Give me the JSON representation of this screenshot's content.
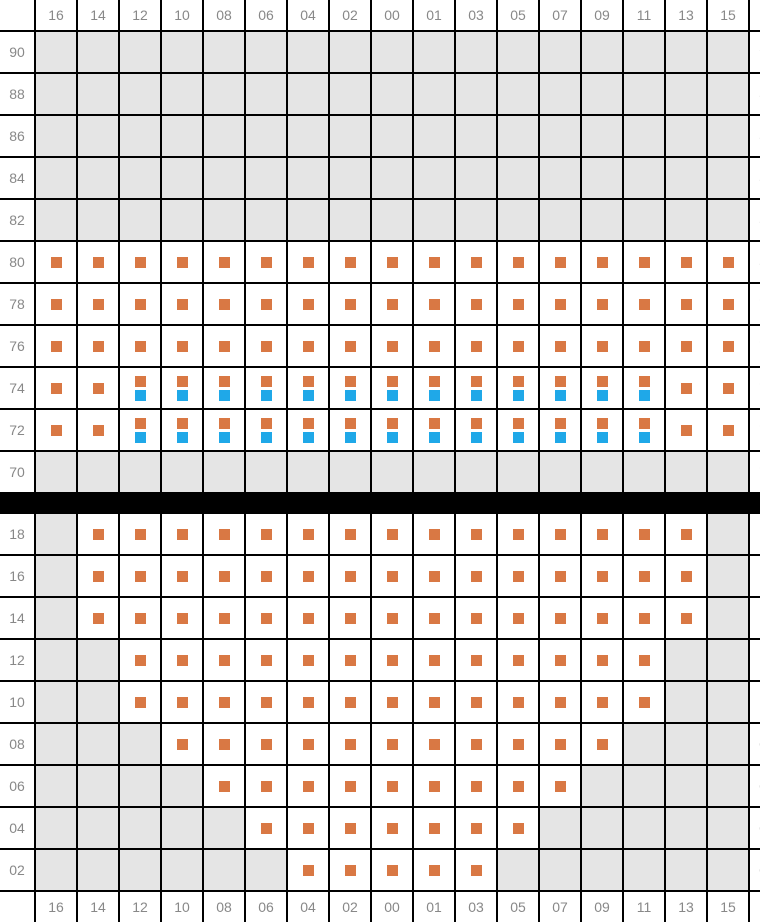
{
  "layout": {
    "cell_size": 40,
    "gap": 2,
    "label_width": 34,
    "marker_size": 11
  },
  "colors": {
    "background": "#000000",
    "cell_inactive": "#e5e5e5",
    "cell_active": "#ffffff",
    "marker_orange": "#d97844",
    "marker_blue": "#1fa8e8",
    "label_text": "#888888"
  },
  "typography": {
    "label_fontsize": 14
  },
  "sections": [
    {
      "id": "upper",
      "col_labels_top": [
        "16",
        "14",
        "12",
        "10",
        "08",
        "06",
        "04",
        "02",
        "00",
        "01",
        "03",
        "05",
        "07",
        "09",
        "11",
        "13",
        "15"
      ],
      "col_labels_bottom": null,
      "row_labels": [
        "90",
        "88",
        "86",
        "84",
        "82",
        "80",
        "78",
        "76",
        "74",
        "72",
        "70"
      ],
      "rows": [
        {
          "y": "90",
          "cells": [
            null,
            null,
            null,
            null,
            null,
            null,
            null,
            null,
            null,
            null,
            null,
            null,
            null,
            null,
            null,
            null,
            null
          ]
        },
        {
          "y": "88",
          "cells": [
            null,
            null,
            null,
            null,
            null,
            null,
            null,
            null,
            null,
            null,
            null,
            null,
            null,
            null,
            null,
            null,
            null
          ]
        },
        {
          "y": "86",
          "cells": [
            null,
            null,
            null,
            null,
            null,
            null,
            null,
            null,
            null,
            null,
            null,
            null,
            null,
            null,
            null,
            null,
            null
          ]
        },
        {
          "y": "84",
          "cells": [
            null,
            null,
            null,
            null,
            null,
            null,
            null,
            null,
            null,
            null,
            null,
            null,
            null,
            null,
            null,
            null,
            null
          ]
        },
        {
          "y": "82",
          "cells": [
            null,
            null,
            null,
            null,
            null,
            null,
            null,
            null,
            null,
            null,
            null,
            null,
            null,
            null,
            null,
            null,
            null
          ]
        },
        {
          "y": "80",
          "cells": [
            "o",
            "o",
            "o",
            "o",
            "o",
            "o",
            "o",
            "o",
            "o",
            "o",
            "o",
            "o",
            "o",
            "o",
            "o",
            "o",
            "o"
          ]
        },
        {
          "y": "78",
          "cells": [
            "o",
            "o",
            "o",
            "o",
            "o",
            "o",
            "o",
            "o",
            "o",
            "o",
            "o",
            "o",
            "o",
            "o",
            "o",
            "o",
            "o"
          ]
        },
        {
          "y": "76",
          "cells": [
            "o",
            "o",
            "o",
            "o",
            "o",
            "o",
            "o",
            "o",
            "o",
            "o",
            "o",
            "o",
            "o",
            "o",
            "o",
            "o",
            "o"
          ]
        },
        {
          "y": "74",
          "cells": [
            "o",
            "o",
            "ob",
            "ob",
            "ob",
            "ob",
            "ob",
            "ob",
            "ob",
            "ob",
            "ob",
            "ob",
            "ob",
            "ob",
            "ob",
            "o",
            "o"
          ]
        },
        {
          "y": "72",
          "cells": [
            "o",
            "o",
            "ob",
            "ob",
            "ob",
            "ob",
            "ob",
            "ob",
            "ob",
            "ob",
            "ob",
            "ob",
            "ob",
            "ob",
            "ob",
            "o",
            "o"
          ]
        },
        {
          "y": "70",
          "cells": [
            null,
            null,
            null,
            null,
            null,
            null,
            null,
            null,
            null,
            null,
            null,
            null,
            null,
            null,
            null,
            null,
            null
          ]
        }
      ]
    },
    {
      "id": "lower",
      "col_labels_top": null,
      "col_labels_bottom": [
        "16",
        "14",
        "12",
        "10",
        "08",
        "06",
        "04",
        "02",
        "00",
        "01",
        "03",
        "05",
        "07",
        "09",
        "11",
        "13",
        "15"
      ],
      "row_labels": [
        "18",
        "16",
        "14",
        "12",
        "10",
        "08",
        "06",
        "04",
        "02"
      ],
      "rows": [
        {
          "y": "18",
          "cells": [
            null,
            "o",
            "o",
            "o",
            "o",
            "o",
            "o",
            "o",
            "o",
            "o",
            "o",
            "o",
            "o",
            "o",
            "o",
            "o",
            null
          ]
        },
        {
          "y": "16",
          "cells": [
            null,
            "o",
            "o",
            "o",
            "o",
            "o",
            "o",
            "o",
            "o",
            "o",
            "o",
            "o",
            "o",
            "o",
            "o",
            "o",
            null
          ]
        },
        {
          "y": "14",
          "cells": [
            null,
            "o",
            "o",
            "o",
            "o",
            "o",
            "o",
            "o",
            "o",
            "o",
            "o",
            "o",
            "o",
            "o",
            "o",
            "o",
            null
          ]
        },
        {
          "y": "12",
          "cells": [
            null,
            null,
            "o",
            "o",
            "o",
            "o",
            "o",
            "o",
            "o",
            "o",
            "o",
            "o",
            "o",
            "o",
            "o",
            null,
            null
          ]
        },
        {
          "y": "10",
          "cells": [
            null,
            null,
            "o",
            "o",
            "o",
            "o",
            "o",
            "o",
            "o",
            "o",
            "o",
            "o",
            "o",
            "o",
            "o",
            null,
            null
          ]
        },
        {
          "y": "08",
          "cells": [
            null,
            null,
            null,
            "o",
            "o",
            "o",
            "o",
            "o",
            "o",
            "o",
            "o",
            "o",
            "o",
            "o",
            null,
            null,
            null
          ]
        },
        {
          "y": "06",
          "cells": [
            null,
            null,
            null,
            null,
            "o",
            "o",
            "o",
            "o",
            "o",
            "o",
            "o",
            "o",
            "o",
            null,
            null,
            null,
            null
          ]
        },
        {
          "y": "04",
          "cells": [
            null,
            null,
            null,
            null,
            null,
            "o",
            "o",
            "o",
            "o",
            "o",
            "o",
            "o",
            null,
            null,
            null,
            null,
            null
          ]
        },
        {
          "y": "02",
          "cells": [
            null,
            null,
            null,
            null,
            null,
            null,
            "o",
            "o",
            "o",
            "o",
            "o",
            null,
            null,
            null,
            null,
            null,
            null
          ]
        }
      ]
    }
  ]
}
